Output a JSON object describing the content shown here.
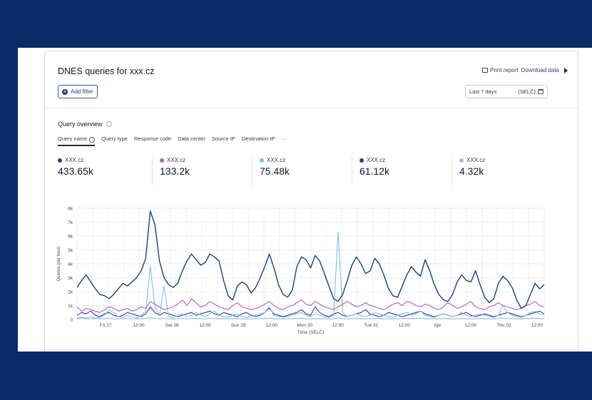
{
  "title": "DNES queries for xxx.cz",
  "actions": {
    "print": "Print report",
    "download": "Download data"
  },
  "add_filter": "Add filter",
  "date_range": {
    "value": "Last 7 days",
    "tz": "(SELČ)"
  },
  "overview": {
    "title": "Query overview"
  },
  "tabs": [
    "Query name",
    "Query type",
    "Response code",
    "Data center",
    "Source IP",
    "Destination IP",
    "···"
  ],
  "stats": [
    {
      "label": "XXX.cz",
      "value": "433.65k",
      "color": "#1e3f7a"
    },
    {
      "label": "XXX.cz",
      "value": "133.2k",
      "color": "#b45bc2"
    },
    {
      "label": "XXX.cz",
      "value": "75.48k",
      "color": "#7ec3d8"
    },
    {
      "label": "XXX.cz",
      "value": "61.12k",
      "color": "#3b34a8"
    },
    {
      "label": "XXX.cz",
      "value": "4.32k",
      "color": "#9fc0ea"
    }
  ],
  "chart_data": {
    "type": "line",
    "ylabel": "Queries (per hour)",
    "xlabel": "Time (SELČ)",
    "ylim": [
      0,
      8000
    ],
    "y_ticks": [
      "0",
      "1k",
      "2k",
      "3k",
      "4k",
      "5k",
      "6k",
      "7k",
      "8k"
    ],
    "x_ticks": [
      "Fri 27",
      "12:00",
      "Sat 28",
      "12:00",
      "Sun 29",
      "12:00",
      "Mon 30",
      "12:00",
      "Tue 31",
      "12:00",
      "Apr",
      "12:00",
      "Thu 02",
      "12:00"
    ],
    "grid": true,
    "series": [
      {
        "color": "#1e3f7a",
        "values": [
          2300,
          2800,
          3200,
          2700,
          2200,
          1800,
          1700,
          1500,
          1800,
          2200,
          2600,
          2400,
          2700,
          3000,
          3500,
          4400,
          7800,
          6800,
          4200,
          3000,
          2500,
          2300,
          2600,
          3500,
          4200,
          4700,
          4300,
          3900,
          4100,
          4700,
          4500,
          4200,
          2800,
          1700,
          1400,
          2400,
          2700,
          2500,
          1900,
          2300,
          3000,
          3800,
          4700,
          3700,
          2500,
          1800,
          1600,
          2100,
          3800,
          4500,
          4300,
          3700,
          4600,
          4200,
          3300,
          2400,
          1500,
          1300,
          1800,
          2800,
          3900,
          4500,
          4000,
          3300,
          3500,
          4400,
          4000,
          3200,
          2200,
          1700,
          1600,
          2400,
          3200,
          3800,
          3400,
          3100,
          4300,
          3500,
          2500,
          1800,
          1400,
          1300,
          1800,
          2700,
          3200,
          2800,
          2700,
          3500,
          2500,
          1600,
          1200,
          1500,
          2600,
          3100,
          2800,
          2300,
          1400,
          800,
          1000,
          1800,
          2600,
          2200,
          2500
        ],
        "values_alt": []
      },
      {
        "color": "#b45bc2",
        "values": [
          900,
          600,
          800,
          700,
          600,
          500,
          700,
          900,
          800,
          600,
          700,
          800,
          600,
          700,
          900,
          800,
          1300,
          1100,
          900,
          700,
          800,
          900,
          1100,
          1400,
          1000,
          1500,
          1200,
          900,
          1000,
          1300,
          1100,
          900,
          800,
          700,
          1000,
          1200,
          900,
          800,
          700,
          800,
          900,
          1100,
          1300,
          1000,
          800,
          700,
          900,
          1000,
          1200,
          1400,
          1100,
          1000,
          1300,
          1100,
          900,
          800,
          700,
          900,
          1100,
          1300,
          1100,
          900,
          1000,
          1200,
          1000,
          900,
          800,
          700,
          900,
          1100,
          1200,
          1000,
          1300,
          1200,
          1000,
          900,
          1100,
          1000,
          800,
          700,
          900,
          1200,
          1000,
          800,
          900,
          1100,
          1300,
          900,
          800,
          700,
          900,
          1000,
          1200,
          1000,
          900,
          800,
          700,
          800,
          1000,
          1100,
          1300,
          1000,
          900
        ]
      },
      {
        "color": "#7ec3d8",
        "values": [
          100,
          150,
          100,
          200,
          100,
          150,
          300,
          700,
          500,
          200,
          150,
          300,
          200,
          100,
          300,
          600,
          3800,
          900,
          300,
          2400,
          200,
          150,
          300,
          400,
          200,
          300,
          500,
          300,
          200,
          400,
          600,
          300,
          200,
          150,
          300,
          400,
          200,
          150,
          200,
          300,
          400,
          500,
          900,
          300,
          200,
          150,
          200,
          300,
          400,
          500,
          300,
          200,
          400,
          300,
          200,
          150,
          300,
          6300,
          500,
          200,
          300,
          400,
          300,
          200,
          300,
          500,
          400,
          300,
          200,
          150,
          300,
          400,
          500,
          300,
          400,
          600,
          300,
          200,
          150,
          300,
          400,
          300,
          200,
          300,
          500,
          300,
          200,
          300,
          400,
          300,
          200,
          150,
          300,
          1000,
          500,
          300,
          200,
          150,
          300,
          500,
          600,
          400,
          300
        ]
      },
      {
        "color": "#3b34a8",
        "values": [
          300,
          500,
          400,
          600,
          300,
          200,
          400,
          500,
          300,
          200,
          300,
          500,
          400,
          300,
          200,
          400,
          900,
          500,
          300,
          500,
          400,
          300,
          200,
          300,
          400,
          500,
          300,
          400,
          500,
          600,
          400,
          300,
          500,
          400,
          300,
          200,
          400,
          500,
          300,
          200,
          300,
          500,
          800,
          400,
          300,
          200,
          300,
          400,
          500,
          700,
          400,
          300,
          900,
          500,
          300,
          200,
          400,
          500,
          300,
          200,
          300,
          400,
          500,
          700,
          400,
          300,
          200,
          300,
          500,
          400,
          300,
          200,
          300,
          400,
          500,
          600,
          400,
          300,
          200,
          300,
          400,
          300,
          200,
          300,
          400,
          500,
          300,
          200,
          300,
          400,
          300,
          200,
          300,
          400,
          500,
          400,
          300,
          200,
          300,
          400,
          500,
          600,
          400
        ]
      },
      {
        "color": "#9fc0ea",
        "values": [
          50,
          80,
          60,
          40,
          70,
          50,
          60,
          90,
          50,
          40,
          60,
          70,
          50,
          40,
          60,
          80,
          120,
          90,
          60,
          80,
          50,
          40,
          60,
          70,
          50,
          60,
          80,
          60,
          50,
          70,
          90,
          60,
          50,
          40,
          60,
          70,
          50,
          40,
          50,
          60,
          70,
          80,
          100,
          60,
          50,
          40,
          50,
          60,
          70,
          80,
          60,
          50,
          70,
          60,
          50,
          40,
          60,
          100,
          70,
          50,
          60,
          70,
          60,
          50,
          60,
          80,
          70,
          60,
          50,
          40,
          60,
          70,
          80,
          60,
          70,
          90,
          60,
          50,
          40,
          60,
          70,
          60,
          50,
          60,
          80,
          60,
          50,
          60,
          70,
          60,
          50,
          40,
          60,
          100,
          70,
          60,
          50,
          40,
          60,
          80,
          90,
          70,
          60
        ]
      }
    ]
  }
}
